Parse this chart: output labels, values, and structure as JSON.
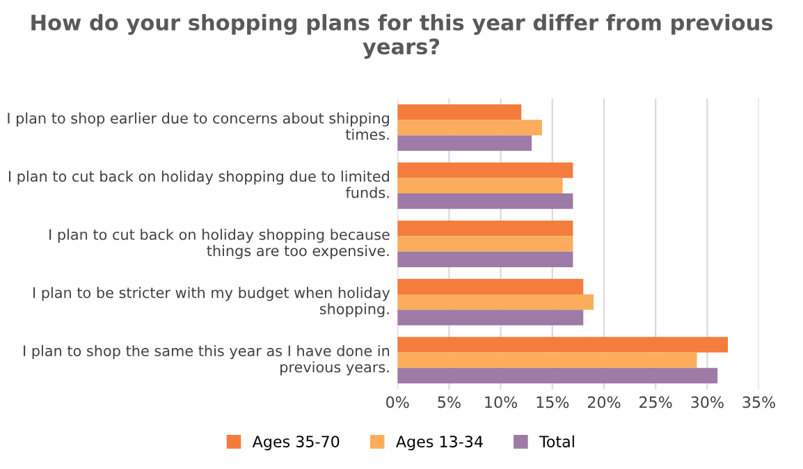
{
  "chart_data": {
    "type": "bar",
    "orientation": "horizontal",
    "title": "How do your shopping plans for this year differ from previous years?",
    "categories": [
      "I plan to shop earlier due to concerns about shipping times.",
      "I plan to cut back on holiday shopping due to limited funds.",
      "I plan to cut back on holiday shopping because things are too expensive.",
      "I plan to be stricter with my budget when holiday shopping.",
      "I plan to shop the same this year as I have done in previous years."
    ],
    "series": [
      {
        "name": "Ages 35-70",
        "color": "#f47c3c",
        "values": [
          12,
          17,
          17,
          18,
          32
        ]
      },
      {
        "name": "Ages 13-34",
        "color": "#fbad5c",
        "values": [
          14,
          16,
          17,
          19,
          29
        ]
      },
      {
        "name": "Total",
        "color": "#9e7aa6",
        "values": [
          13,
          17,
          17,
          18,
          31
        ]
      }
    ],
    "xlim": [
      0,
      35
    ],
    "xticks": [
      {
        "value": 0,
        "label": "0%"
      },
      {
        "value": 5,
        "label": "5%"
      },
      {
        "value": 10,
        "label": "10%"
      },
      {
        "value": 15,
        "label": "15%"
      },
      {
        "value": 20,
        "label": "20%"
      },
      {
        "value": 25,
        "label": "25%"
      },
      {
        "value": 30,
        "label": "30%"
      },
      {
        "value": 35,
        "label": "35%"
      }
    ],
    "grid": "x",
    "legend": "bottom"
  }
}
